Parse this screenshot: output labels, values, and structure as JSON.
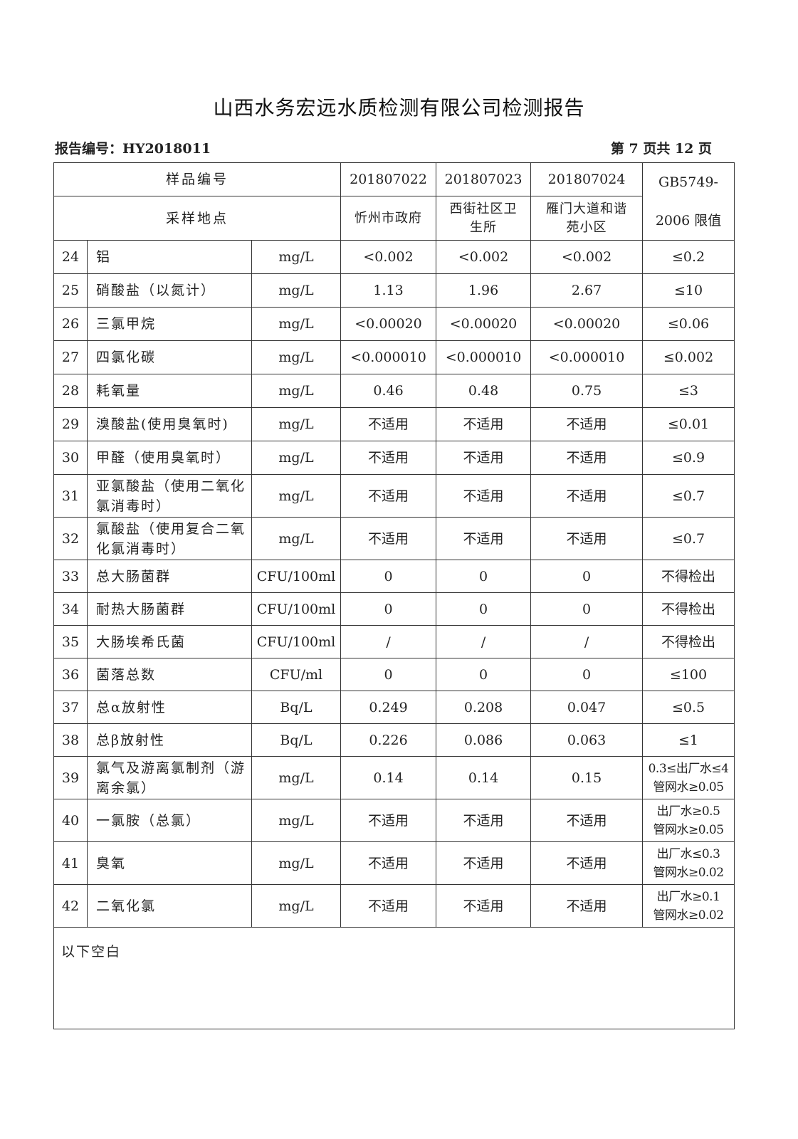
{
  "title": "山西水务宏远水质检测有限公司检测报告",
  "report_no": "报告编号：HY2018011",
  "page_no": "第 7 页共 12 页",
  "header": {
    "sample_no_label": "样品编号",
    "location_label": "采样地点",
    "samples": [
      {
        "no": "201807022",
        "location": "忻州市政府"
      },
      {
        "no": "201807023",
        "location": "西街社区卫生所"
      },
      {
        "no": "201807024",
        "location": "雁门大道和谐苑小区"
      }
    ],
    "limit_label_1": "GB5749-",
    "limit_label_2": "2006 限值"
  },
  "rows": [
    {
      "n": "24",
      "item": "铝",
      "unit": "mg/L",
      "v": [
        "<0.002",
        "<0.002",
        "<0.002"
      ],
      "limit": "≤0.2"
    },
    {
      "n": "25",
      "item": "硝酸盐（以氮计）",
      "unit": "mg/L",
      "v": [
        "1.13",
        "1.96",
        "2.67"
      ],
      "limit": "≤10"
    },
    {
      "n": "26",
      "item": "三氯甲烷",
      "unit": "mg/L",
      "v": [
        "<0.00020",
        "<0.00020",
        "<0.00020"
      ],
      "limit": "≤0.06"
    },
    {
      "n": "27",
      "item": "四氯化碳",
      "unit": "mg/L",
      "v": [
        "<0.000010",
        "<0.000010",
        "<0.000010"
      ],
      "limit": "≤0.002"
    },
    {
      "n": "28",
      "item": "耗氧量",
      "unit": "mg/L",
      "v": [
        "0.46",
        "0.48",
        "0.75"
      ],
      "limit": "≤3"
    },
    {
      "n": "29",
      "item": "溴酸盐(使用臭氧时)",
      "unit": "mg/L",
      "v": [
        "不适用",
        "不适用",
        "不适用"
      ],
      "limit": "≤0.01"
    },
    {
      "n": "30",
      "item": "甲醛（使用臭氧时）",
      "unit": "mg/L",
      "v": [
        "不适用",
        "不适用",
        "不适用"
      ],
      "limit": "≤0.9"
    },
    {
      "n": "31",
      "item": "亚氯酸盐（使用二氧化氯消毒时）",
      "unit": "mg/L",
      "v": [
        "不适用",
        "不适用",
        "不适用"
      ],
      "limit": "≤0.7",
      "tall": true
    },
    {
      "n": "32",
      "item": "氯酸盐（使用复合二氧化氯消毒时）",
      "unit": "mg/L",
      "v": [
        "不适用",
        "不适用",
        "不适用"
      ],
      "limit": "≤0.7",
      "tall": true
    },
    {
      "n": "33",
      "item": "总大肠菌群",
      "unit": "CFU/100ml",
      "v": [
        "0",
        "0",
        "0"
      ],
      "limit": "不得检出"
    },
    {
      "n": "34",
      "item": "耐热大肠菌群",
      "unit": "CFU/100ml",
      "v": [
        "0",
        "0",
        "0"
      ],
      "limit": "不得检出"
    },
    {
      "n": "35",
      "item": "大肠埃希氏菌",
      "unit": "CFU/100ml",
      "v": [
        "/",
        "/",
        "/"
      ],
      "limit": "不得检出"
    },
    {
      "n": "36",
      "item": "菌落总数",
      "unit": "CFU/ml",
      "v": [
        "0",
        "0",
        "0"
      ],
      "limit": "≤100"
    },
    {
      "n": "37",
      "item": "总α放射性",
      "unit": "Bq/L",
      "v": [
        "0.249",
        "0.208",
        "0.047"
      ],
      "limit": "≤0.5"
    },
    {
      "n": "38",
      "item": "总β放射性",
      "unit": "Bq/L",
      "v": [
        "0.226",
        "0.086",
        "0.063"
      ],
      "limit": "≤1"
    },
    {
      "n": "39",
      "item": "氯气及游离氯制剂（游离余氯）",
      "unit": "mg/L",
      "v": [
        "0.14",
        "0.14",
        "0.15"
      ],
      "limit": "0.3≤出厂水≤4\n管网水≥0.05",
      "tall": true
    },
    {
      "n": "40",
      "item": "一氯胺（总氯）",
      "unit": "mg/L",
      "v": [
        "不适用",
        "不适用",
        "不适用"
      ],
      "limit": "出厂水≥0.5\n管网水≥0.05",
      "tall": true
    },
    {
      "n": "41",
      "item": "臭氧",
      "unit": "mg/L",
      "v": [
        "不适用",
        "不适用",
        "不适用"
      ],
      "limit": "出厂水≤0.3\n管网水≥0.02",
      "tall": true
    },
    {
      "n": "42",
      "item": "二氧化氯",
      "unit": "mg/L",
      "v": [
        "不适用",
        "不适用",
        "不适用"
      ],
      "limit": "出厂水≥0.1\n管网水≥0.02",
      "tall": true
    }
  ],
  "footer_note": "以下空白"
}
